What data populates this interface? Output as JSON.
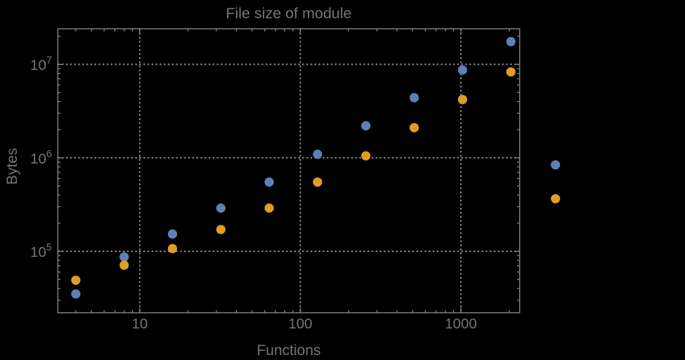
{
  "chart_data": {
    "type": "scatter",
    "title": "File size of module",
    "xlabel": "Functions",
    "ylabel": "Bytes",
    "x_scale": "log",
    "y_scale": "log",
    "grid": "dotted gridlines at major decades, frame with mirrored inward ticks",
    "legend": "none",
    "background_note": "black background, gray frame and text",
    "xlim": [
      3.09,
      2323
    ],
    "ylim": [
      22000,
      24000000
    ],
    "x_ticks": [
      {
        "value": 10,
        "label": "10"
      },
      {
        "value": 100,
        "label": "100"
      },
      {
        "value": 1000,
        "label": "1000"
      }
    ],
    "y_ticks": [
      {
        "value": 100000,
        "mantissa": "10",
        "exponent": "5"
      },
      {
        "value": 1000000,
        "mantissa": "10",
        "exponent": "6"
      },
      {
        "value": 10000000,
        "mantissa": "10",
        "exponent": "7"
      }
    ],
    "x": [
      4,
      8,
      16,
      32,
      64,
      128,
      256,
      512,
      1024,
      2048,
      3880
    ],
    "series": [
      {
        "name": "series-blue",
        "color": "#5e81b5",
        "values": [
          35000,
          87000,
          153000,
          290000,
          550000,
          1090000,
          2200000,
          4400000,
          8700000,
          17500000,
          840000
        ]
      },
      {
        "name": "series-orange",
        "color": "#e19c24",
        "values": [
          49000,
          71000,
          107000,
          171000,
          290000,
          550000,
          1050000,
          2100000,
          4200000,
          8300000,
          365000
        ]
      }
    ],
    "note": "last two points (x=3880) are drawn outside the right edge of the plot frame (unclipped)",
    "colors": {
      "background": "#000000",
      "frame": "#848484",
      "grid": "#8f8f8f",
      "text": "#757575"
    }
  }
}
